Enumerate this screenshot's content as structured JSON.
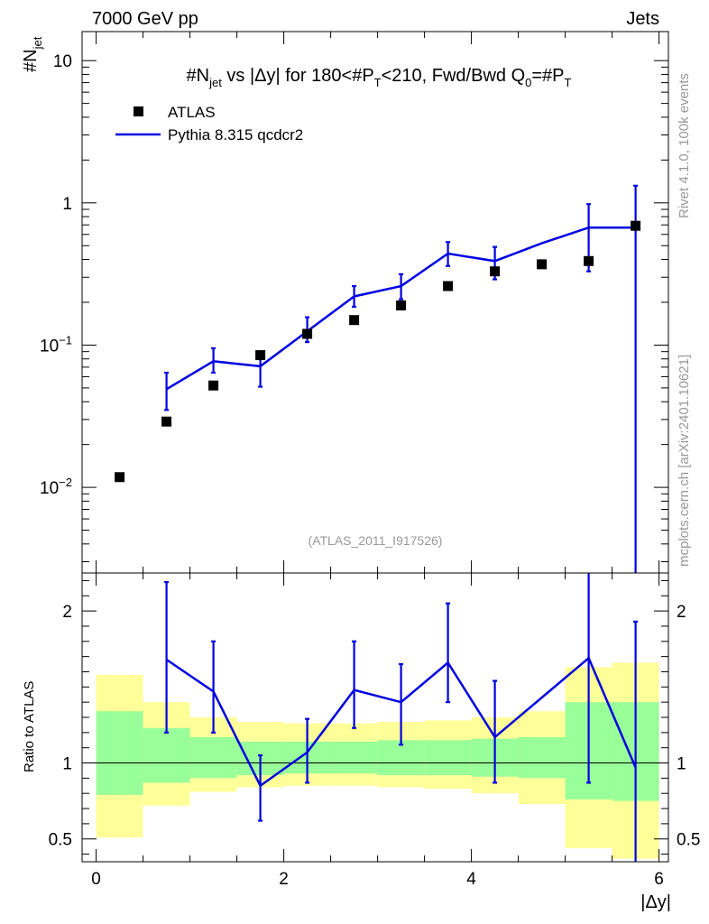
{
  "header": {
    "left": "7000 GeV pp",
    "right": "Jets"
  },
  "side_labels": {
    "rivet": "Rivet 4.1.0,  100k events",
    "mcplots": "mcplots.cern.ch [arXiv:2401.10621]"
  },
  "chart_data": [
    {
      "type": "scatter",
      "panel": "main",
      "title": "#N̅jet vs |Δy| for 180<#P̅T<210, Fwd/Bwd Q0=#P̅T",
      "title_parts": {
        "prefix": "#N",
        "n_sub": "jet",
        "middle": " vs |Δy|  for 180<#P",
        "p_sub": "T",
        "middle2": "<210, Fwd/Bwd Q",
        "q_sub": "0",
        "middle3": "=#P",
        "p2_sub": "T"
      },
      "ylabel_parts": {
        "main": "#N",
        "sub": "jet"
      },
      "y_scale": "log",
      "ylim": [
        0.0025,
        16
      ],
      "xlim": [
        -0.15,
        6.1
      ],
      "y_tick_labels": [
        {
          "value": 10,
          "base": "10",
          "exp": ""
        },
        {
          "value": 1,
          "base": "1",
          "exp": ""
        },
        {
          "value": 0.1,
          "base": "10",
          "exp": "−1"
        },
        {
          "value": 0.01,
          "base": "10",
          "exp": "−2"
        }
      ],
      "legend": {
        "position": "top-left",
        "entries": [
          {
            "label": "ATLAS",
            "marker": "square",
            "color": "#000000"
          },
          {
            "label": "Pythia 8.315 qcdcr2",
            "marker": "line",
            "color": "#0000e0"
          }
        ]
      },
      "watermark": "(ATLAS_2011_I917526)",
      "series": [
        {
          "name": "ATLAS",
          "x": [
            0.25,
            0.75,
            1.25,
            1.75,
            2.25,
            2.75,
            3.25,
            3.75,
            4.25,
            4.75,
            5.25,
            5.75
          ],
          "values": [
            0.0118,
            0.029,
            0.052,
            0.085,
            0.12,
            0.15,
            0.19,
            0.26,
            0.33,
            0.37,
            0.39,
            0.69
          ]
        },
        {
          "name": "Pythia 8.315 qcdcr2",
          "x": [
            0.75,
            1.25,
            1.75,
            2.25,
            2.75,
            3.25,
            3.75,
            4.25,
            4.75,
            5.25,
            5.75
          ],
          "values": [
            0.049,
            0.077,
            0.071,
            0.125,
            0.22,
            0.26,
            0.44,
            0.39,
            0.52,
            0.67,
            0.67
          ],
          "err_low": [
            0.035,
            0.064,
            0.051,
            0.105,
            0.186,
            0.21,
            0.36,
            0.29,
            null,
            0.33,
            0.0001
          ],
          "err_high": [
            0.064,
            0.095,
            0.09,
            0.157,
            0.26,
            0.315,
            0.53,
            0.49,
            null,
            0.98,
            1.32
          ]
        }
      ]
    },
    {
      "type": "line",
      "panel": "ratio",
      "ylabel": "Ratio to ATLAS",
      "xlabel": "|Δy|",
      "ylim": [
        0.35,
        2.25
      ],
      "xlim": [
        -0.15,
        6.1
      ],
      "x_ticks": [
        0,
        2,
        4,
        6
      ],
      "x_tick_labels": [
        "0",
        "2",
        "4",
        "6"
      ],
      "y_ticks": [
        0.5,
        1,
        2
      ],
      "y_tick_labels": [
        "0.5",
        "1",
        "2"
      ],
      "bin_edges": [
        0,
        0.5,
        1,
        1.5,
        2,
        2.5,
        3,
        3.5,
        4,
        4.5,
        5,
        5.5,
        6
      ],
      "band_yellow": {
        "low": [
          0.51,
          0.72,
          0.81,
          0.84,
          0.85,
          0.85,
          0.84,
          0.83,
          0.8,
          0.73,
          0.44,
          0.37
        ],
        "high": [
          1.58,
          1.4,
          1.3,
          1.27,
          1.26,
          1.26,
          1.27,
          1.28,
          1.3,
          1.34,
          1.63,
          1.66
        ]
      },
      "band_green": {
        "low": [
          0.79,
          0.87,
          0.9,
          0.92,
          0.93,
          0.93,
          0.92,
          0.92,
          0.91,
          0.9,
          0.76,
          0.75
        ],
        "high": [
          1.34,
          1.23,
          1.17,
          1.14,
          1.14,
          1.14,
          1.15,
          1.15,
          1.16,
          1.17,
          1.4,
          1.4
        ]
      },
      "reference_line": 1,
      "series": [
        {
          "name": "Pythia 8.315 qcdcr2 / ATLAS",
          "x": [
            0.75,
            1.25,
            1.75,
            2.25,
            2.75,
            3.25,
            3.75,
            4.25,
            5.25,
            5.75
          ],
          "values": [
            1.68,
            1.47,
            0.85,
            1.07,
            1.48,
            1.4,
            1.66,
            1.17,
            1.69,
            0.97
          ],
          "err_low": [
            1.2,
            1.2,
            0.62,
            0.87,
            1.23,
            1.12,
            1.4,
            0.87,
            0.87,
            0.3
          ],
          "err_high": [
            2.19,
            1.8,
            1.05,
            1.29,
            1.8,
            1.65,
            2.05,
            1.54,
            2.4,
            1.93
          ]
        }
      ]
    }
  ]
}
